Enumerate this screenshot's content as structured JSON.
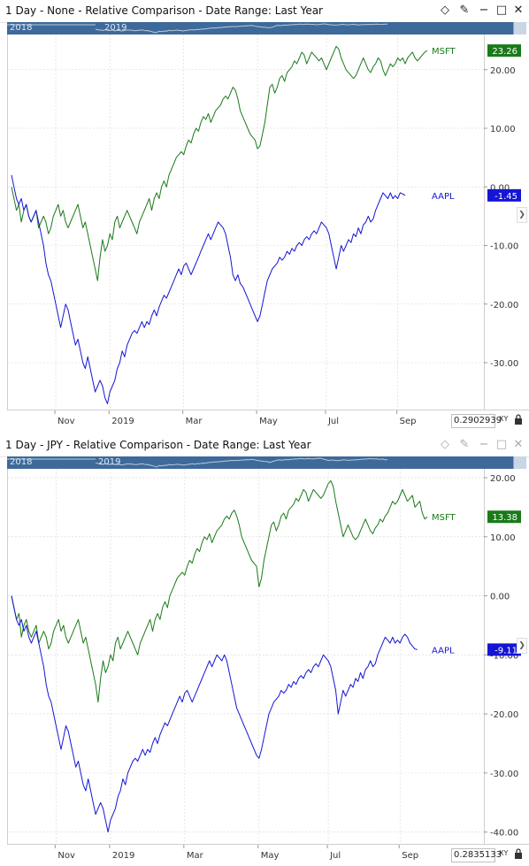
{
  "colors": {
    "msft": "#1a7a1a",
    "aapl": "#1515d6",
    "nav_bg": "#3d6a9a",
    "grid": "#d6d6d6"
  },
  "panels": [
    {
      "title": "1 Day - None - Relative Comparison - Date Range: Last Year",
      "nav_labels": [
        "2018",
        "2019"
      ],
      "x_readout": "0.2902939",
      "xy_label": "XY",
      "icons": [
        "diamond-icon",
        "pin-icon",
        "minimize-icon",
        "maximize-icon",
        "close-icon"
      ],
      "chart_data": {
        "type": "line",
        "x_tick_labels": [
          "Nov",
          "2019",
          "Mar",
          "May",
          "Jul",
          "Sep"
        ],
        "x_ticks_index": [
          18,
          40,
          70,
          100,
          128,
          157
        ],
        "y_ticks": [
          20.0,
          10.0,
          0.0,
          -10.0,
          -20.0,
          -30.0
        ],
        "y_tick_labels": [
          "20.00",
          "10.00",
          "0.00",
          "-10.00",
          "-20.00",
          "-30.00"
        ],
        "ylim": [
          -38,
          26
        ],
        "series": [
          {
            "name": "MSFT",
            "color": "#1a7a1a",
            "last_value": "23.26",
            "values": [
              0.0,
              -2.0,
              -4.0,
              -3.0,
              -6.0,
              -4.0,
              -3.0,
              -5.0,
              -6.0,
              -5.0,
              -4.0,
              -7.0,
              -6.0,
              -5.0,
              -6.0,
              -8.0,
              -7.0,
              -5.0,
              -4.0,
              -3.0,
              -5.0,
              -4.0,
              -6.0,
              -7.0,
              -6.0,
              -5.0,
              -4.0,
              -3.0,
              -5.0,
              -7.0,
              -6.0,
              -8.0,
              -10.0,
              -12.0,
              -14.0,
              -16.0,
              -12.0,
              -9.0,
              -11.0,
              -10.0,
              -8.0,
              -9.0,
              -6.0,
              -5.0,
              -7.0,
              -6.0,
              -5.0,
              -4.0,
              -5.0,
              -6.0,
              -7.0,
              -8.0,
              -6.0,
              -5.0,
              -4.0,
              -3.0,
              -2.0,
              -4.0,
              -2.0,
              -1.0,
              -2.0,
              0.0,
              1.0,
              0.0,
              2.0,
              3.0,
              4.0,
              5.0,
              5.5,
              6.0,
              5.5,
              7.0,
              8.0,
              7.5,
              9.0,
              10.0,
              9.5,
              11.0,
              12.0,
              11.5,
              12.5,
              11.0,
              12.0,
              13.0,
              13.5,
              14.0,
              15.0,
              15.5,
              15.0,
              16.0,
              17.0,
              16.5,
              15.0,
              13.0,
              12.0,
              11.0,
              10.0,
              9.0,
              8.5,
              8.0,
              6.5,
              7.0,
              9.0,
              11.0,
              14.0,
              17.0,
              17.5,
              16.0,
              17.0,
              18.5,
              19.0,
              18.0,
              19.5,
              20.0,
              20.5,
              21.5,
              21.0,
              22.0,
              23.0,
              22.5,
              21.0,
              22.0,
              23.0,
              22.5,
              22.0,
              21.5,
              22.0,
              21.0,
              20.0,
              21.0,
              22.0,
              23.0,
              24.0,
              23.5,
              22.0,
              21.0,
              20.0,
              19.5,
              19.0,
              18.5,
              19.0,
              20.0,
              21.0,
              22.0,
              21.0,
              20.0,
              19.5,
              20.5,
              21.0,
              22.0,
              21.5,
              20.0,
              19.0,
              20.0,
              21.0,
              20.5,
              21.0,
              22.0,
              21.5,
              22.0,
              21.0,
              22.0,
              22.5,
              23.0,
              22.0,
              21.5,
              22.0,
              22.5,
              23.0,
              23.26
            ]
          },
          {
            "name": "AAPL",
            "color": "#1515d6",
            "last_value": "-1.45",
            "values": [
              2.0,
              0.0,
              -2.0,
              -3.0,
              -2.0,
              -4.0,
              -3.0,
              -5.0,
              -6.0,
              -5.0,
              -4.0,
              -6.0,
              -8.0,
              -10.0,
              -13.0,
              -15.0,
              -16.0,
              -18.0,
              -20.0,
              -22.0,
              -24.0,
              -22.0,
              -20.0,
              -21.0,
              -23.0,
              -25.0,
              -27.0,
              -26.0,
              -28.0,
              -30.0,
              -31.0,
              -29.0,
              -31.0,
              -33.0,
              -35.0,
              -34.0,
              -33.0,
              -34.0,
              -36.0,
              -37.0,
              -35.0,
              -34.0,
              -33.0,
              -31.0,
              -30.0,
              -28.0,
              -29.0,
              -27.0,
              -26.0,
              -25.0,
              -24.5,
              -25.0,
              -24.0,
              -23.0,
              -24.0,
              -23.0,
              -23.5,
              -22.0,
              -21.0,
              -22.0,
              -20.5,
              -19.5,
              -18.5,
              -19.0,
              -18.0,
              -17.0,
              -16.0,
              -15.0,
              -14.0,
              -15.0,
              -13.5,
              -13.0,
              -14.0,
              -15.0,
              -14.0,
              -13.0,
              -12.0,
              -11.0,
              -10.0,
              -9.0,
              -8.0,
              -9.0,
              -8.0,
              -7.0,
              -6.0,
              -6.5,
              -7.0,
              -8.0,
              -10.0,
              -12.0,
              -15.0,
              -16.0,
              -15.0,
              -16.5,
              -17.0,
              -18.0,
              -19.0,
              -20.0,
              -21.0,
              -22.0,
              -23.0,
              -22.0,
              -20.0,
              -18.0,
              -16.0,
              -15.0,
              -14.0,
              -13.5,
              -13.0,
              -12.0,
              -12.5,
              -12.0,
              -11.0,
              -11.5,
              -10.5,
              -11.0,
              -10.0,
              -9.5,
              -10.0,
              -9.0,
              -8.5,
              -9.0,
              -8.0,
              -7.5,
              -8.0,
              -7.0,
              -6.0,
              -6.5,
              -7.0,
              -8.0,
              -10.0,
              -12.0,
              -14.0,
              -12.0,
              -10.0,
              -11.0,
              -10.0,
              -9.0,
              -9.5,
              -8.0,
              -8.5,
              -7.0,
              -8.0,
              -6.5,
              -6.0,
              -5.0,
              -6.0,
              -5.5,
              -4.0,
              -3.0,
              -2.0,
              -1.0,
              -1.5,
              -2.0,
              -1.0,
              -2.0,
              -1.5,
              -2.0,
              -1.0,
              -1.2,
              -1.45
            ]
          }
        ]
      }
    },
    {
      "title": "1 Day - JPY - Relative Comparison - Date Range: Last Year",
      "nav_labels": [
        "2018",
        "2019"
      ],
      "x_readout": "0.2835133",
      "xy_label": "XY",
      "icons": [
        "diamond-icon",
        "pin-icon",
        "minimize-icon",
        "maximize-icon",
        "close-icon"
      ],
      "chart_data": {
        "type": "line",
        "x_tick_labels": [
          "Nov",
          "2019",
          "Mar",
          "May",
          "Jul",
          "Sep"
        ],
        "x_ticks_index": [
          18,
          40,
          70,
          100,
          128,
          157
        ],
        "y_ticks": [
          20.0,
          10.0,
          0.0,
          -10.0,
          -20.0,
          -30.0,
          -40.0
        ],
        "y_tick_labels": [
          "20.00",
          "10.00",
          "0.00",
          "-10.00",
          "-20.00",
          "-30.00",
          "-40.00"
        ],
        "ylim": [
          -42,
          21.5
        ],
        "series": [
          {
            "name": "MSFT",
            "color": "#1a7a1a",
            "last_value": "13.38",
            "values": [
              0.0,
              -2.0,
              -4.0,
              -3.0,
              -7.0,
              -5.0,
              -4.0,
              -6.0,
              -7.0,
              -6.0,
              -5.0,
              -8.0,
              -7.0,
              -6.0,
              -7.0,
              -9.0,
              -8.0,
              -6.0,
              -5.0,
              -4.0,
              -6.0,
              -5.0,
              -7.0,
              -8.0,
              -7.0,
              -6.0,
              -5.0,
              -4.0,
              -6.0,
              -8.0,
              -7.0,
              -9.0,
              -11.0,
              -13.0,
              -15.0,
              -18.0,
              -14.0,
              -11.0,
              -13.0,
              -12.0,
              -10.0,
              -11.0,
              -8.0,
              -7.0,
              -9.0,
              -8.0,
              -7.0,
              -6.0,
              -7.0,
              -8.0,
              -9.0,
              -10.0,
              -8.0,
              -7.0,
              -6.0,
              -5.0,
              -4.0,
              -6.0,
              -4.0,
              -3.0,
              -4.0,
              -2.0,
              -1.0,
              -2.0,
              0.0,
              1.0,
              2.0,
              3.0,
              3.5,
              4.0,
              3.5,
              5.0,
              6.0,
              5.5,
              7.0,
              8.0,
              7.5,
              9.0,
              10.0,
              9.5,
              10.5,
              9.0,
              10.0,
              11.0,
              11.5,
              12.0,
              13.0,
              13.5,
              13.0,
              14.0,
              14.5,
              13.5,
              12.0,
              10.0,
              9.0,
              8.0,
              7.0,
              6.0,
              5.5,
              5.0,
              1.5,
              3.0,
              6.0,
              8.0,
              10.0,
              12.0,
              12.5,
              11.0,
              12.0,
              13.5,
              14.0,
              13.0,
              14.5,
              15.0,
              15.5,
              16.5,
              16.0,
              17.0,
              18.0,
              17.5,
              16.0,
              17.0,
              18.0,
              17.5,
              17.0,
              16.5,
              17.0,
              18.0,
              19.0,
              19.5,
              18.5,
              16.0,
              14.0,
              12.0,
              10.0,
              11.0,
              12.0,
              11.0,
              10.0,
              9.5,
              10.0,
              11.0,
              12.0,
              13.0,
              12.0,
              11.0,
              10.5,
              11.5,
              12.0,
              13.0,
              12.5,
              13.5,
              14.0,
              15.0,
              16.0,
              15.5,
              16.0,
              17.0,
              18.0,
              17.0,
              16.0,
              16.5,
              17.0,
              15.0,
              15.5,
              16.0,
              14.0,
              13.0,
              13.38
            ]
          },
          {
            "name": "AAPL",
            "color": "#1515d6",
            "last_value": "-9.11",
            "values": [
              0.0,
              -2.0,
              -4.0,
              -5.0,
              -4.0,
              -6.0,
              -5.0,
              -7.0,
              -8.0,
              -7.0,
              -6.0,
              -8.0,
              -10.0,
              -12.0,
              -15.0,
              -17.0,
              -18.0,
              -20.0,
              -22.0,
              -24.0,
              -26.0,
              -24.0,
              -22.0,
              -23.0,
              -25.0,
              -27.0,
              -29.0,
              -28.0,
              -30.0,
              -32.0,
              -33.0,
              -31.0,
              -33.0,
              -35.0,
              -37.0,
              -36.0,
              -35.0,
              -36.0,
              -38.0,
              -40.0,
              -38.0,
              -37.0,
              -36.0,
              -34.0,
              -33.0,
              -31.0,
              -32.0,
              -30.0,
              -29.0,
              -28.0,
              -27.5,
              -28.0,
              -27.0,
              -26.0,
              -27.0,
              -26.0,
              -26.5,
              -25.0,
              -24.0,
              -25.0,
              -23.5,
              -22.5,
              -21.5,
              -22.0,
              -21.0,
              -20.0,
              -19.0,
              -18.0,
              -17.0,
              -18.0,
              -16.5,
              -16.0,
              -17.0,
              -18.0,
              -17.0,
              -16.0,
              -15.0,
              -14.0,
              -13.0,
              -12.0,
              -11.0,
              -12.0,
              -11.0,
              -10.0,
              -10.5,
              -11.0,
              -10.0,
              -11.0,
              -13.0,
              -15.0,
              -17.0,
              -19.0,
              -20.0,
              -21.0,
              -22.0,
              -23.0,
              -24.0,
              -25.0,
              -26.0,
              -27.0,
              -27.5,
              -26.0,
              -24.0,
              -22.0,
              -20.0,
              -19.0,
              -18.0,
              -17.5,
              -17.0,
              -16.0,
              -16.5,
              -16.0,
              -15.0,
              -15.5,
              -14.5,
              -15.0,
              -14.0,
              -13.5,
              -14.0,
              -13.0,
              -12.5,
              -13.0,
              -12.0,
              -11.5,
              -12.0,
              -11.0,
              -10.0,
              -10.5,
              -11.0,
              -12.0,
              -14.0,
              -16.0,
              -20.0,
              -18.0,
              -16.0,
              -17.0,
              -16.0,
              -15.0,
              -15.5,
              -14.0,
              -14.5,
              -13.0,
              -14.0,
              -12.5,
              -12.0,
              -11.0,
              -12.0,
              -11.5,
              -10.0,
              -9.0,
              -8.0,
              -7.0,
              -7.5,
              -8.0,
              -7.0,
              -8.0,
              -7.5,
              -8.0,
              -7.0,
              -6.5,
              -7.0,
              -8.0,
              -8.5,
              -9.0,
              -9.11
            ]
          }
        ]
      }
    }
  ]
}
